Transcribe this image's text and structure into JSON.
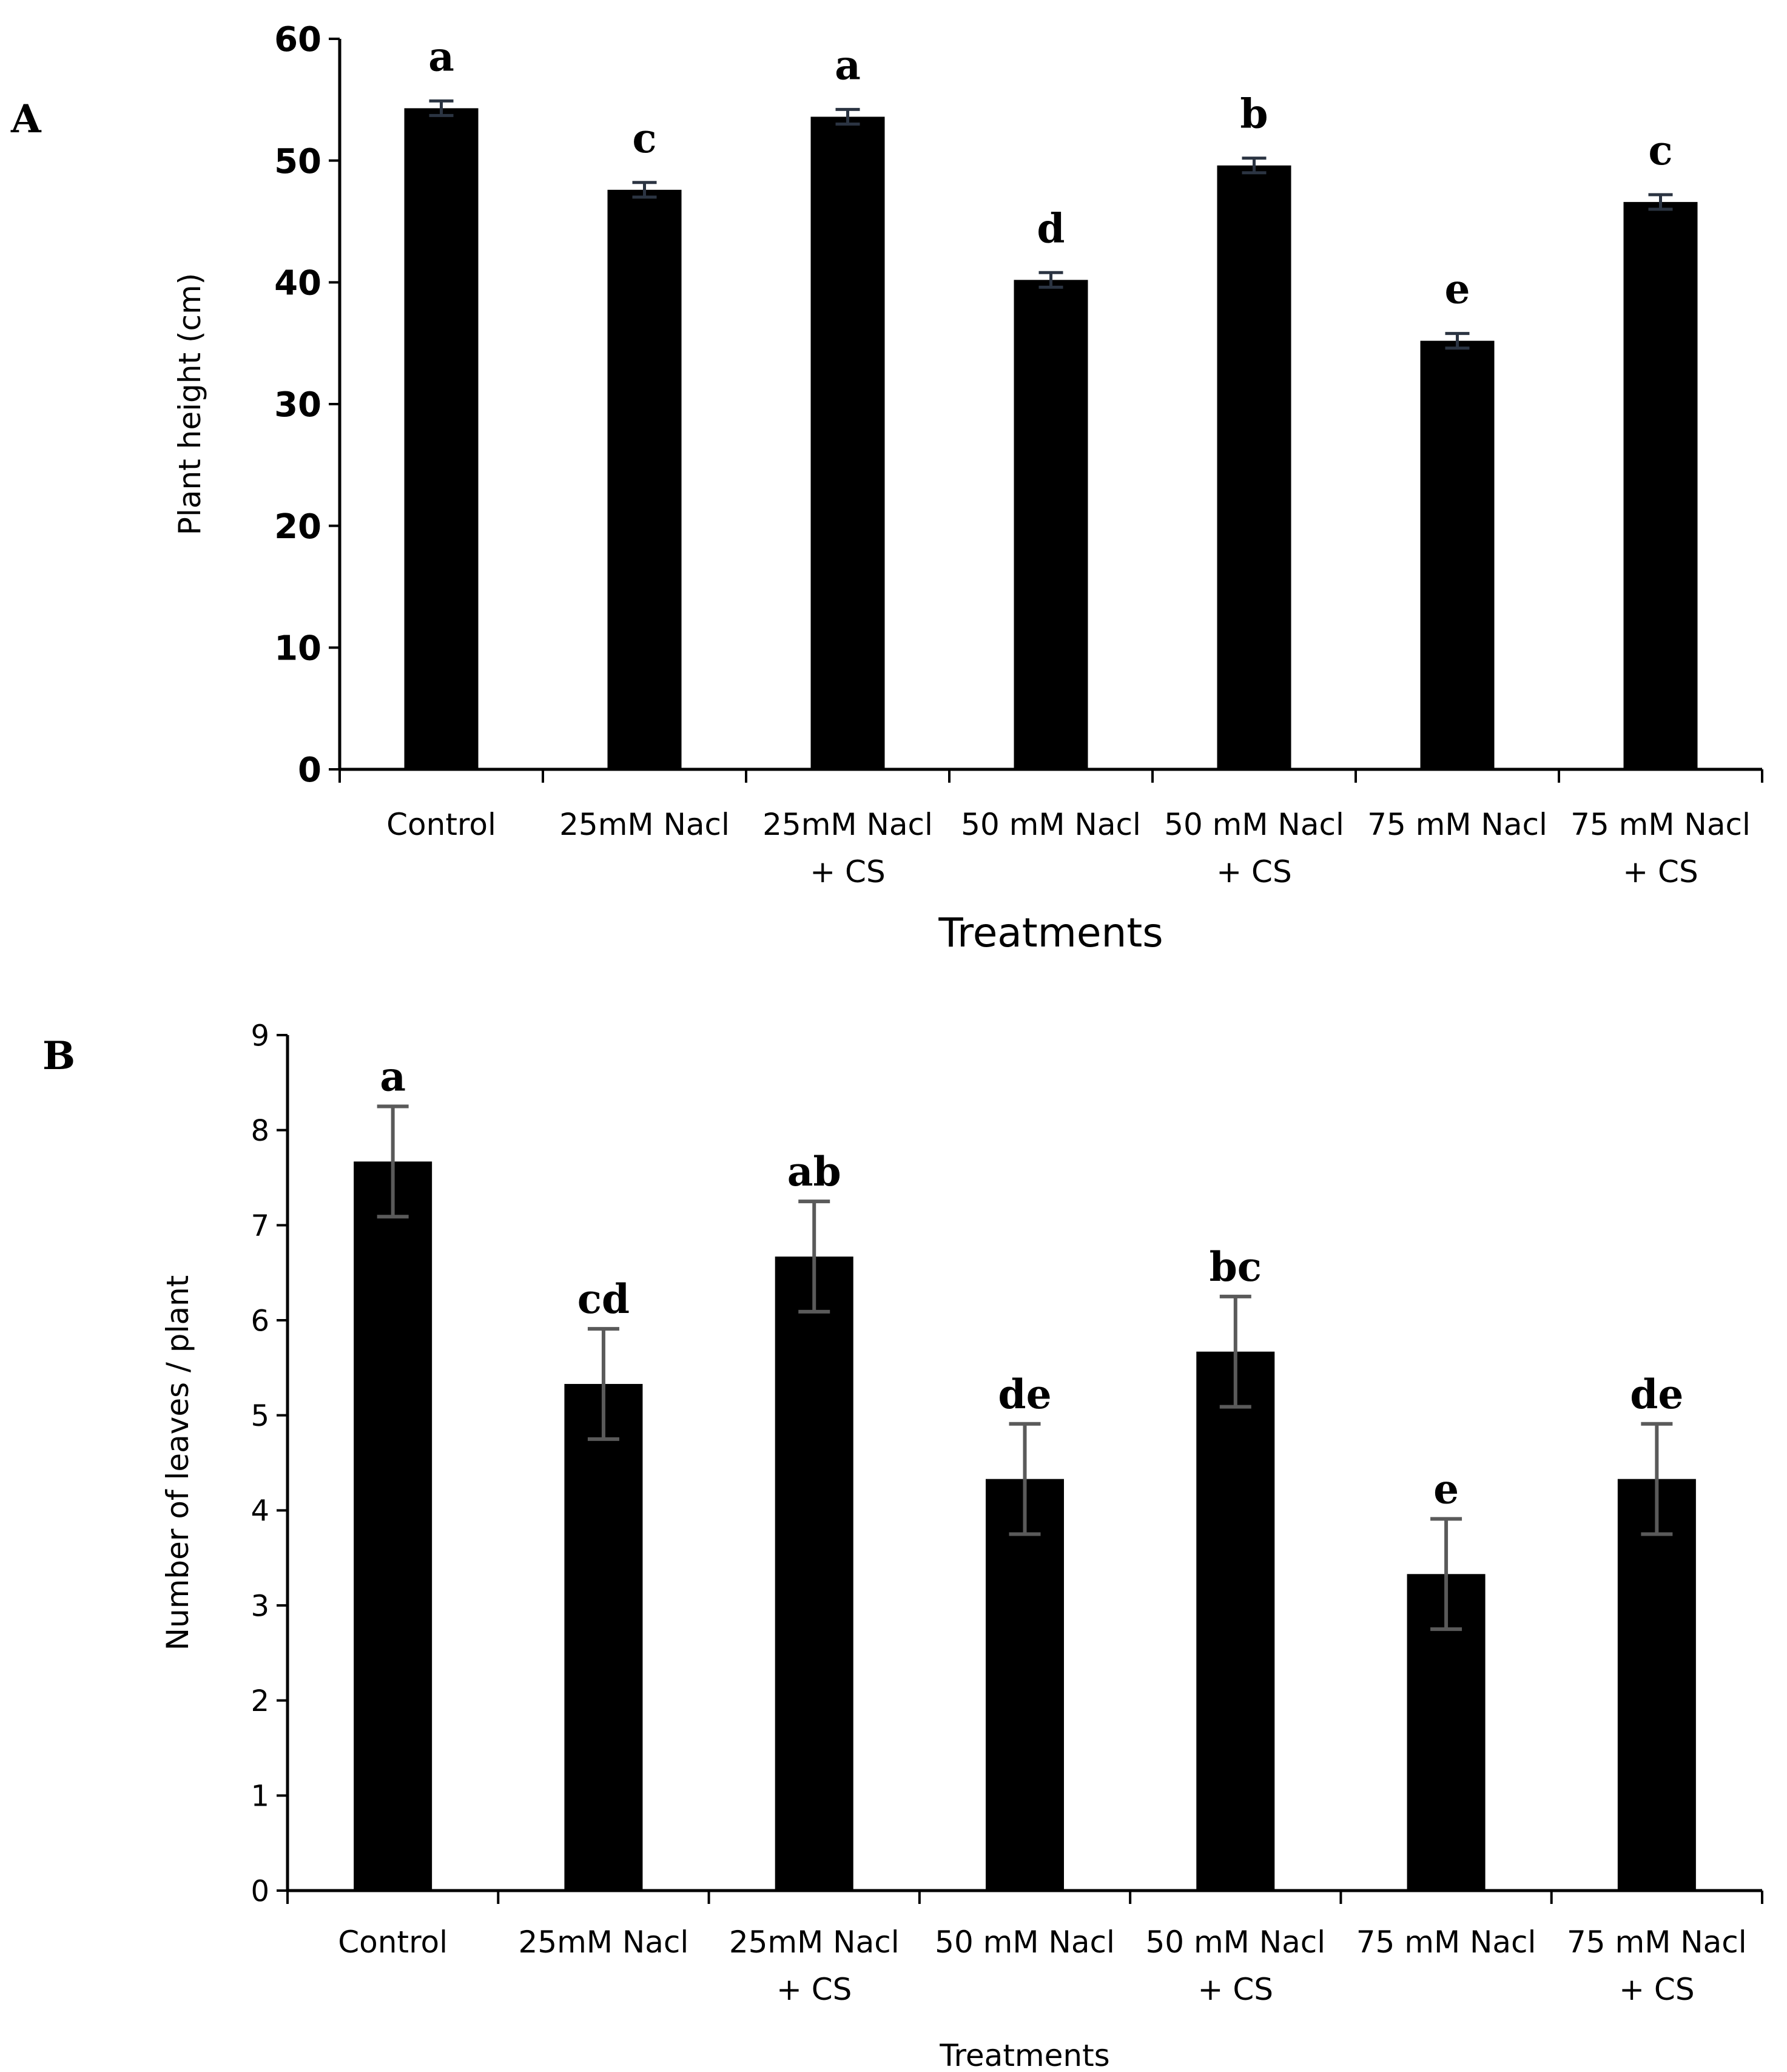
{
  "chart_data": [
    {
      "panel": "A",
      "type": "bar",
      "categories": [
        "Control",
        "25mM Nacl",
        "25mM Nacl\n+ CS",
        "50 mM Nacl",
        "50 mM Nacl\n+ CS",
        "75 mM Nacl",
        "75 mM Nacl\n+ CS"
      ],
      "values": [
        54.3,
        47.6,
        53.6,
        40.2,
        49.6,
        35.2,
        46.6
      ],
      "errors": [
        0.6,
        0.6,
        0.6,
        0.6,
        0.6,
        0.6,
        0.6
      ],
      "letters": [
        "a",
        "c",
        "a",
        "d",
        "b",
        "e",
        "c"
      ],
      "ylabel": "Plant height (cm)",
      "xlabel": "Treatments",
      "ylim": [
        0,
        60
      ],
      "yticks": [
        0,
        10,
        20,
        30,
        40,
        50,
        60
      ]
    },
    {
      "panel": "B",
      "type": "bar",
      "categories": [
        "Control",
        "25mM Nacl",
        "25mM Nacl\n+ CS",
        "50 mM Nacl",
        "50 mM Nacl\n+ CS",
        "75 mM Nacl",
        "75 mM Nacl\n+ CS"
      ],
      "values": [
        7.67,
        5.33,
        6.67,
        4.33,
        5.67,
        3.33,
        4.33
      ],
      "errors": [
        0.58,
        0.58,
        0.58,
        0.58,
        0.58,
        0.58,
        0.58
      ],
      "letters": [
        "a",
        "cd",
        "ab",
        "de",
        "bc",
        "e",
        "de"
      ],
      "ylabel": "Number of leaves / plant",
      "xlabel": "Treatments",
      "ylim": [
        0,
        9
      ],
      "yticks": [
        0,
        1,
        2,
        3,
        4,
        5,
        6,
        7,
        8,
        9
      ]
    }
  ]
}
